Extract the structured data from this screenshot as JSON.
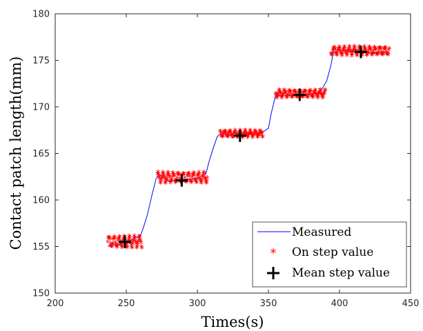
{
  "chart_data": {
    "type": "line",
    "title": "",
    "xlabel": "Times(s)",
    "ylabel": "Contact patch length(mm)",
    "xlim": [
      200,
      450
    ],
    "ylim": [
      150,
      180
    ],
    "xticks": [
      200,
      250,
      300,
      350,
      400,
      450
    ],
    "yticks": [
      150,
      155,
      160,
      165,
      170,
      175,
      180
    ],
    "grid": false,
    "legend_position": "bottom-right",
    "series": [
      {
        "name": "Measured",
        "type": "line",
        "color": "#0000ff",
        "x": [
          237,
          240,
          245,
          250,
          255,
          260,
          262,
          265,
          268,
          271,
          273,
          280,
          290,
          300,
          306,
          308,
          311,
          314,
          317,
          325,
          335,
          345,
          350,
          352,
          355,
          366,
          376,
          386,
          391,
          394,
          396,
          405,
          415,
          425,
          435
        ],
        "y": [
          155.0,
          155.3,
          155.2,
          155.5,
          155.8,
          156.2,
          157.0,
          158.5,
          160.5,
          162.3,
          162.8,
          162.0,
          162.2,
          162.3,
          162.8,
          164.0,
          165.5,
          166.8,
          167.2,
          166.9,
          167.0,
          167.2,
          167.7,
          169.3,
          171.2,
          171.2,
          171.3,
          171.5,
          172.8,
          174.5,
          176.2,
          176.0,
          175.9,
          175.8,
          175.8
        ]
      },
      {
        "name": "On step value",
        "type": "scatter",
        "marker": "asterisk",
        "color": "#ff0000",
        "segments": [
          {
            "x_start": 237,
            "x_end": 261,
            "mean": 155.4,
            "amp": 0.55
          },
          {
            "x_start": 272,
            "x_end": 307,
            "mean": 162.3,
            "amp": 0.5
          },
          {
            "x_start": 316,
            "x_end": 346,
            "mean": 167.0,
            "amp": 0.3
          },
          {
            "x_start": 355,
            "x_end": 390,
            "mean": 171.3,
            "amp": 0.35
          },
          {
            "x_start": 394,
            "x_end": 435,
            "mean": 175.9,
            "amp": 0.4
          }
        ]
      },
      {
        "name": "Mean step value",
        "type": "scatter",
        "marker": "plus",
        "color": "#000000",
        "x": [
          249,
          289,
          330,
          372,
          415
        ],
        "y": [
          155.5,
          162.1,
          166.9,
          171.3,
          175.9
        ]
      }
    ]
  }
}
